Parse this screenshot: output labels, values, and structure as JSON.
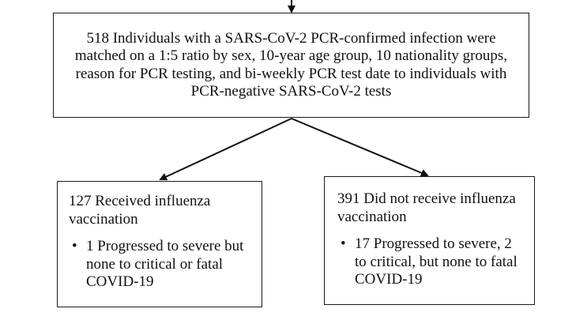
{
  "flowchart": {
    "top_box": {
      "text": "518 Individuals with a SARS-CoV-2 PCR-confirmed infection were matched on a 1:5 ratio by sex, 10-year age group, 10 nationality groups, reason for PCR testing, and bi-weekly PCR test date to individuals with PCR-negative SARS-CoV-2 tests"
    },
    "left_box": {
      "heading": "127 Received influenza vaccination",
      "bullet": "1 Progressed to severe but none to critical or fatal COVID-19"
    },
    "right_box": {
      "heading": "391 Did not receive influenza vaccination",
      "bullet": "17 Progressed to severe, 2 to critical, but none to fatal COVID-19"
    }
  }
}
